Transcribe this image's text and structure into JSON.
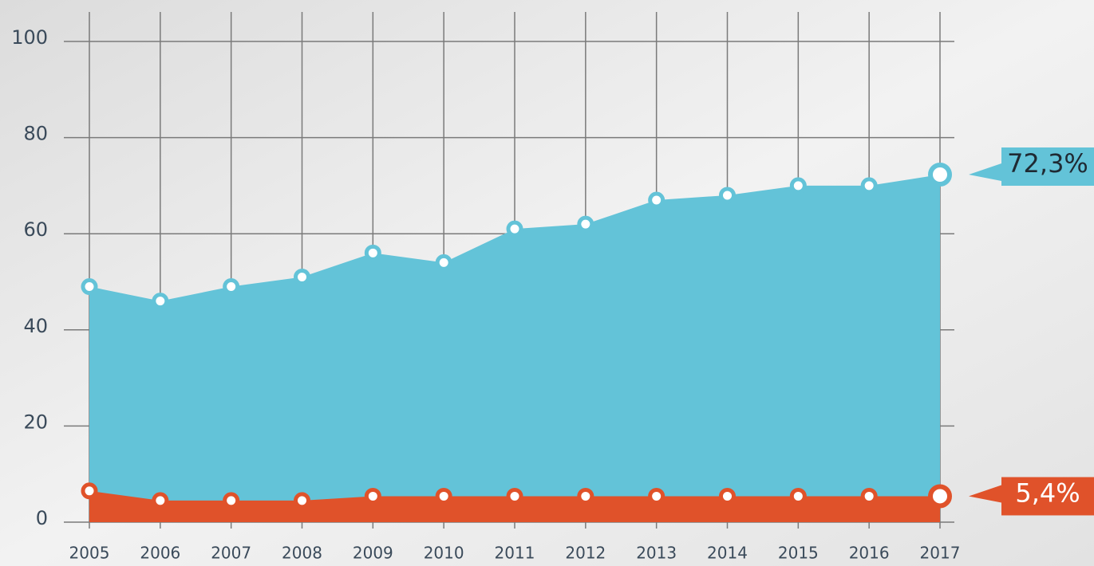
{
  "chart_data": {
    "type": "area",
    "categories": [
      "2005",
      "2006",
      "2007",
      "2008",
      "2009",
      "2010",
      "2011",
      "2012",
      "2013",
      "2014",
      "2015",
      "2016",
      "2017"
    ],
    "series": [
      {
        "color": "#63c3d8",
        "values": [
          49,
          46,
          49,
          51,
          56,
          54,
          61,
          62,
          67,
          68,
          70,
          70,
          72.3
        ],
        "value_labels": [
          null,
          null,
          null,
          null,
          null,
          null,
          null,
          null,
          null,
          null,
          null,
          null,
          "72,3%"
        ]
      },
      {
        "color": "#e0522a",
        "values": [
          6.5,
          4.5,
          4.5,
          4.5,
          5.4,
          5.4,
          5.4,
          5.4,
          5.4,
          5.4,
          5.4,
          5.4,
          5.4
        ],
        "value_labels": [
          null,
          null,
          null,
          null,
          null,
          null,
          null,
          null,
          null,
          null,
          null,
          null,
          "5,4%"
        ]
      }
    ],
    "ylim": [
      0,
      100
    ],
    "yticks": [
      0,
      20,
      40,
      60,
      80,
      100
    ],
    "grid": true
  }
}
